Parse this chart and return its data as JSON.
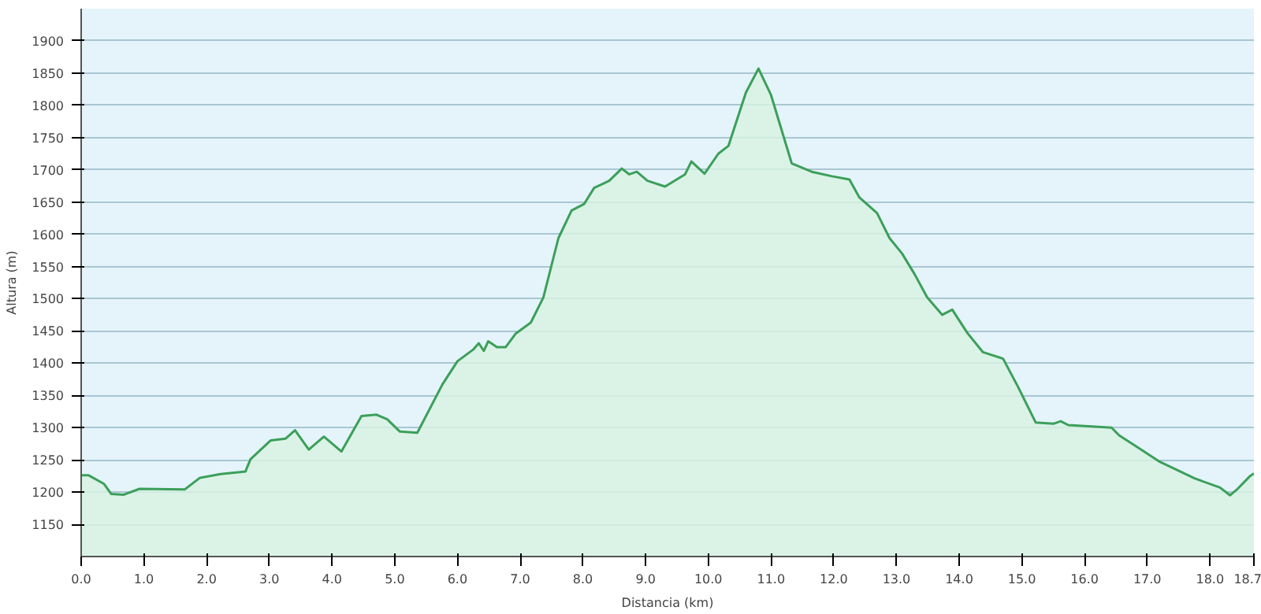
{
  "chart_data": {
    "type": "area",
    "xlabel": "Distancia (km)",
    "ylabel": "Altura (m)",
    "xlim": [
      0,
      18.7
    ],
    "ylim": [
      1100,
      1950
    ],
    "xticks": [
      {
        "value": 0,
        "label": "0.0"
      },
      {
        "value": 1,
        "label": "1.0"
      },
      {
        "value": 2,
        "label": "2.0"
      },
      {
        "value": 3,
        "label": "3.0"
      },
      {
        "value": 4,
        "label": "4.0"
      },
      {
        "value": 5,
        "label": "5.0"
      },
      {
        "value": 6,
        "label": "6.0"
      },
      {
        "value": 7,
        "label": "7.0"
      },
      {
        "value": 8,
        "label": "8.0"
      },
      {
        "value": 9,
        "label": "9.0"
      },
      {
        "value": 10,
        "label": "10.0"
      },
      {
        "value": 11,
        "label": "11.0"
      },
      {
        "value": 12,
        "label": "12.0"
      },
      {
        "value": 13,
        "label": "13.0"
      },
      {
        "value": 14,
        "label": "14.0"
      },
      {
        "value": 15,
        "label": "15.0"
      },
      {
        "value": 16,
        "label": "16.0"
      },
      {
        "value": 17,
        "label": "17.0"
      },
      {
        "value": 18,
        "label": "18.0"
      },
      18.7
    ],
    "yticks": [
      1150,
      1200,
      1250,
      1300,
      1350,
      1400,
      1450,
      1500,
      1550,
      1600,
      1650,
      1700,
      1750,
      1800,
      1850,
      1900
    ],
    "grid": "y",
    "series": [
      {
        "color": "#3c9f5a",
        "x": [
          0,
          0.12,
          0.36,
          0.48,
          0.68,
          0.93,
          1.65,
          1.89,
          2.22,
          2.62,
          2.7,
          3.02,
          3.26,
          3.41,
          3.63,
          3.87,
          4.15,
          4.47,
          4.71,
          4.88,
          5.08,
          5.36,
          5.76,
          6.0,
          6.25,
          6.34,
          6.42,
          6.49,
          6.63,
          6.77,
          6.93,
          7.17,
          7.37,
          7.61,
          7.82,
          8.02,
          8.18,
          8.42,
          8.62,
          8.74,
          8.86,
          9.03,
          9.31,
          9.63,
          9.73,
          9.94,
          10.16,
          10.32,
          10.6,
          10.8,
          11.0,
          11.33,
          11.65,
          11.97,
          12.25,
          12.41,
          12.69,
          12.89,
          13.09,
          13.29,
          13.49,
          13.73,
          13.89,
          14.13,
          14.38,
          14.7,
          14.94,
          15.22,
          15.5,
          15.62,
          15.74,
          16.43,
          16.55,
          16.87,
          17.2,
          17.76,
          18.16,
          18.32,
          18.44,
          18.64,
          18.7
        ],
        "values": [
          1226,
          1226,
          1213,
          1197,
          1196,
          1205,
          1204,
          1222,
          1228,
          1232,
          1251,
          1280,
          1283,
          1296,
          1266,
          1286,
          1263,
          1318,
          1320,
          1313,
          1294,
          1292,
          1367,
          1403,
          1421,
          1431,
          1419,
          1434,
          1425,
          1425,
          1446,
          1463,
          1502,
          1594,
          1637,
          1647,
          1672,
          1683,
          1702,
          1693,
          1697,
          1683,
          1674,
          1693,
          1713,
          1694,
          1725,
          1737,
          1820,
          1857,
          1816,
          1710,
          1697,
          1690,
          1685,
          1657,
          1633,
          1594,
          1570,
          1538,
          1502,
          1475,
          1483,
          1447,
          1417,
          1407,
          1363,
          1308,
          1306,
          1310,
          1304,
          1300,
          1288,
          1268,
          1247,
          1221,
          1207,
          1195,
          1205,
          1225,
          1229
        ]
      }
    ]
  }
}
